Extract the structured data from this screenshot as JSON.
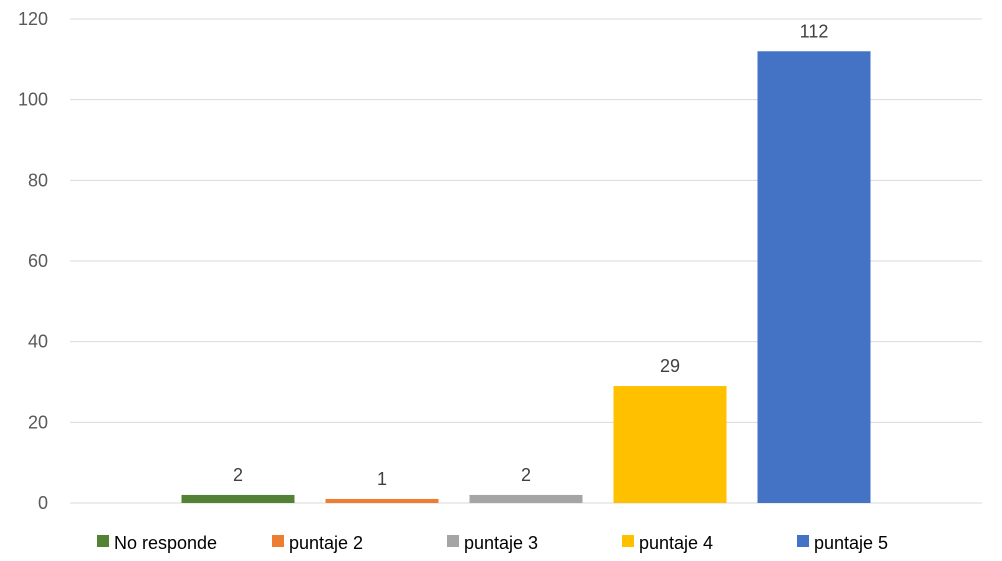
{
  "chart_data": {
    "type": "bar",
    "title": "",
    "xlabel": "",
    "ylabel": "",
    "ylim": [
      0,
      120
    ],
    "y_ticks": [
      0,
      20,
      40,
      60,
      80,
      100,
      120
    ],
    "grid": true,
    "legend_position": "bottom",
    "data_labels": true,
    "series": [
      {
        "name": "No responde",
        "value": 2,
        "color": "#548235"
      },
      {
        "name": "puntaje 2",
        "value": 1,
        "color": "#ED7D31"
      },
      {
        "name": "puntaje 3",
        "value": 2,
        "color": "#A5A5A5"
      },
      {
        "name": "puntaje 4",
        "value": 29,
        "color": "#FFC000"
      },
      {
        "name": "puntaje 5",
        "value": 112,
        "color": "#4472C4"
      }
    ]
  }
}
